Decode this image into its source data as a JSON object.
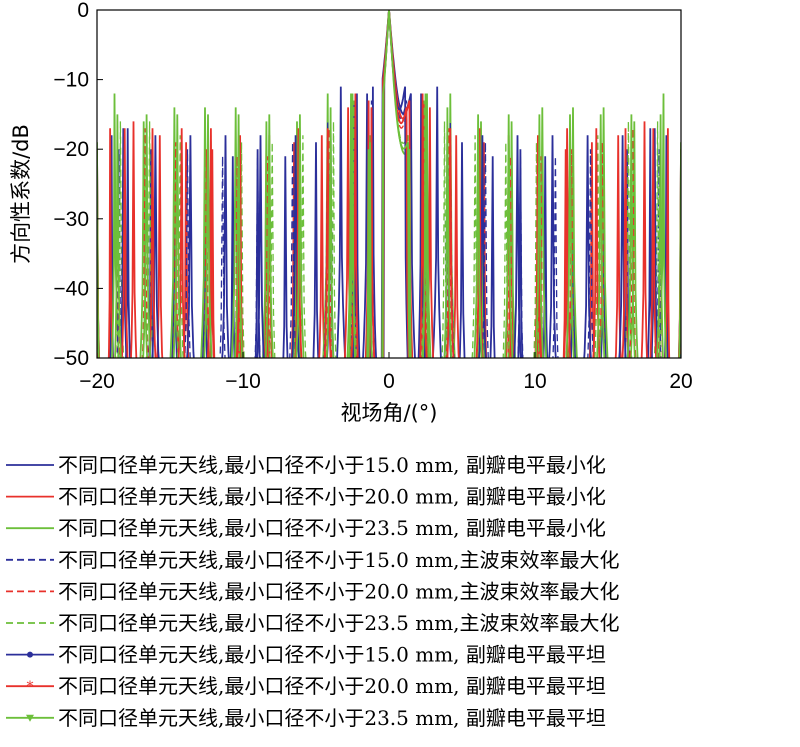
{
  "chart_data": {
    "type": "line",
    "xlabel": "视场角/(°)",
    "ylabel": "方向性系数/dB",
    "xlim": [
      -20,
      20
    ],
    "ylim": [
      -50,
      0
    ],
    "xticks": [
      -20,
      -10,
      0,
      10,
      20
    ],
    "yticks": [
      0,
      -10,
      -20,
      -30,
      -40,
      -50
    ],
    "xtick_labels": [
      "−20",
      "−10",
      "0",
      "10",
      "20"
    ],
    "ytick_labels": [
      "0",
      "−10",
      "−20",
      "−30",
      "−40",
      "−50"
    ],
    "legend_position": "bottom",
    "series": [
      {
        "name": "不同口径单元天线,最小口径不小于15.0 mm, 副瓣电平最小化",
        "color": "#2b2f9a",
        "style": "solid",
        "marker": "none",
        "x": [
          -20,
          -19,
          -17.9,
          -16.3,
          -14.7,
          -12.6,
          -10.7,
          -9,
          -7.1,
          -5,
          -3.3,
          -1.5,
          0,
          1.5,
          3.3,
          5,
          7.1,
          9,
          10.7,
          12.6,
          14.7,
          16.3,
          17.9,
          19,
          20
        ],
        "y": [
          -22,
          -18,
          -17,
          -20,
          -19,
          -21,
          -21,
          -20,
          -21,
          -19,
          -11,
          -12,
          0,
          -12,
          -11,
          -19,
          -21,
          -20,
          -21,
          -21,
          -19,
          -20,
          -17,
          -18,
          -22
        ]
      },
      {
        "name": "不同口径单元天线,最小口径不小于20.0 mm, 副瓣电平最小化",
        "color": "#e8312b",
        "style": "solid",
        "marker": "none",
        "x": [
          -20,
          -19.1,
          -17.5,
          -15.7,
          -13.9,
          -12.1,
          -10.3,
          -8.4,
          -6.5,
          -4.6,
          -2.8,
          -1.4,
          0,
          1.4,
          2.8,
          4.6,
          6.5,
          8.4,
          10.3,
          12.1,
          13.9,
          15.7,
          17.5,
          19.1,
          20
        ],
        "y": [
          -21,
          -17,
          -16,
          -18,
          -19,
          -20,
          -20,
          -20,
          -19,
          -18,
          -14,
          -13,
          0,
          -13,
          -14,
          -18,
          -19,
          -20,
          -20,
          -20,
          -19,
          -18,
          -16,
          -17,
          -21
        ]
      },
      {
        "name": "不同口径单元天线,最小口径不小于23.5 mm, 副瓣电平最小化",
        "color": "#6cbf3a",
        "style": "solid",
        "marker": "none",
        "x": [
          -20,
          -18.8,
          -16.8,
          -14.7,
          -12.6,
          -10.5,
          -8.4,
          -6.3,
          -4.2,
          -2.6,
          -1.4,
          0,
          1.4,
          2.6,
          4.2,
          6.3,
          8.4,
          10.5,
          12.6,
          14.7,
          16.8,
          18.8,
          20
        ],
        "y": [
          -22,
          -12,
          -16,
          -14,
          -14,
          -14,
          -16,
          -16,
          -12,
          -12,
          -20,
          0,
          -20,
          -12,
          -12,
          -16,
          -16,
          -14,
          -14,
          -14,
          -16,
          -12,
          -22
        ]
      },
      {
        "name": "不同口径单元天线,最小口径不小于15.0 mm,主波束效率最大化",
        "color": "#2b2f9a",
        "style": "dashed",
        "marker": "none",
        "x": [
          -20,
          -18.5,
          -16.2,
          -13.8,
          -11.4,
          -9,
          -6.6,
          -4.2,
          -2.4,
          -1.2,
          0,
          1.2,
          2.4,
          4.2,
          6.6,
          9,
          11.4,
          13.8,
          16.2,
          18.5,
          20
        ],
        "y": [
          -24,
          -20,
          -19,
          -20,
          -21,
          -21,
          -19,
          -16,
          -13,
          -13,
          0,
          -13,
          -13,
          -16,
          -19,
          -21,
          -21,
          -20,
          -19,
          -20,
          -24
        ]
      },
      {
        "name": "不同口径单元天线,最小口径不小于20.0 mm,主波束效率最大化",
        "color": "#e8312b",
        "style": "dashed",
        "marker": "none",
        "x": [
          -20,
          -18.6,
          -16.7,
          -14.6,
          -12.5,
          -10.4,
          -8.3,
          -6.2,
          -4.1,
          -2.4,
          -1.2,
          0,
          1.2,
          2.4,
          4.1,
          6.2,
          8.3,
          10.4,
          12.5,
          14.6,
          16.7,
          18.6,
          20
        ],
        "y": [
          -24,
          -18,
          -17,
          -19,
          -20,
          -21,
          -21,
          -20,
          -17,
          -13,
          -15,
          0,
          -15,
          -13,
          -17,
          -20,
          -21,
          -21,
          -20,
          -19,
          -17,
          -18,
          -24
        ]
      },
      {
        "name": "不同口径单元天线,最小口径不小于23.5 mm,主波束效率最大化",
        "color": "#6cbf3a",
        "style": "dashed",
        "marker": "none",
        "x": [
          -20,
          -18.4,
          -16.4,
          -14.3,
          -12.2,
          -10.1,
          -8,
          -5.9,
          -3.8,
          -2.4,
          -1.3,
          0,
          1.3,
          2.4,
          3.8,
          5.9,
          8,
          10.1,
          12.2,
          14.3,
          16.4,
          18.4,
          20
        ],
        "y": [
          -20,
          -16,
          -16,
          -18,
          -18,
          -19,
          -19,
          -18,
          -16,
          -13,
          -18,
          0,
          -18,
          -13,
          -16,
          -18,
          -19,
          -19,
          -18,
          -18,
          -16,
          -16,
          -20
        ]
      },
      {
        "name": "不同口径单元天线,最小口径不小于15.0 mm, 副瓣电平最平坦",
        "color": "#2b2f9a",
        "style": "solid",
        "marker": "dot",
        "x": [
          -20,
          -18.2,
          -16,
          -13.6,
          -11.2,
          -8.8,
          -6.4,
          -4,
          -2.2,
          -1.1,
          0,
          1.1,
          2.2,
          4,
          6.4,
          8.8,
          11.2,
          13.6,
          16,
          18.2,
          20
        ],
        "y": [
          -20,
          -17,
          -18,
          -18,
          -18,
          -18,
          -18,
          -17,
          -12,
          -11,
          0,
          -11,
          -12,
          -17,
          -18,
          -18,
          -18,
          -18,
          -18,
          -17,
          -20
        ]
      },
      {
        "name": "不同口径单元天线,最小口径不小于20.0 mm, 副瓣电平最平坦",
        "color": "#e8312b",
        "style": "solid",
        "marker": "star",
        "x": [
          -20,
          -18.1,
          -16.2,
          -14.2,
          -12.2,
          -10.2,
          -8.2,
          -6.2,
          -4.2,
          -2.3,
          -1.2,
          0,
          1.2,
          2.3,
          4.2,
          6.2,
          8.2,
          10.2,
          12.2,
          14.2,
          16.2,
          18.1,
          20
        ],
        "y": [
          -20,
          -17,
          -17,
          -17,
          -17,
          -18,
          -18,
          -17,
          -17,
          -12,
          -14,
          0,
          -14,
          -12,
          -17,
          -17,
          -18,
          -18,
          -17,
          -17,
          -17,
          -17,
          -20
        ]
      },
      {
        "name": "不同口径单元天线,最小口径不小于23.5 mm, 副瓣电平最平坦",
        "color": "#6cbf3a",
        "style": "solid",
        "marker": "triangle",
        "x": [
          -20,
          -18.6,
          -16.6,
          -14.5,
          -12.4,
          -10.3,
          -8.2,
          -6.1,
          -4,
          -2.5,
          -1.3,
          0,
          1.3,
          2.5,
          4,
          6.1,
          8.2,
          10.3,
          12.4,
          14.5,
          16.6,
          18.6,
          20
        ],
        "y": [
          -19,
          -15,
          -15,
          -15,
          -15,
          -15,
          -15,
          -15,
          -14,
          -12,
          -19,
          0,
          -19,
          -12,
          -14,
          -15,
          -15,
          -15,
          -15,
          -15,
          -15,
          -15,
          -19
        ]
      }
    ]
  }
}
